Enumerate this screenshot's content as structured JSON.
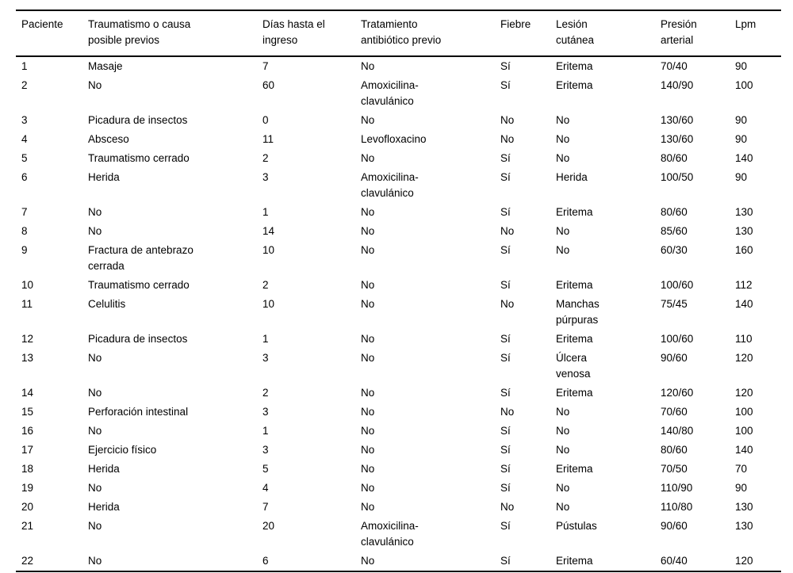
{
  "table": {
    "columns": [
      {
        "key": "paciente",
        "label": "Paciente"
      },
      {
        "key": "traumatismo",
        "label": "Traumatismo o causa posible previos"
      },
      {
        "key": "dias",
        "label": "Días hasta el ingreso"
      },
      {
        "key": "tratamiento",
        "label": "Tratamiento antibiótico previo"
      },
      {
        "key": "fiebre",
        "label": "Fiebre"
      },
      {
        "key": "lesion",
        "label": "Lesión cutánea"
      },
      {
        "key": "presion",
        "label": "Presión arterial"
      },
      {
        "key": "lpm",
        "label": "Lpm"
      }
    ],
    "rows": [
      [
        "1",
        "Masaje",
        "7",
        "No",
        "Sí",
        "Eritema",
        "70/40",
        "90"
      ],
      [
        "2",
        "No",
        "60",
        "Amoxicilina-clavulánico",
        "Sí",
        "Eritema",
        "140/90",
        "100"
      ],
      [
        "3",
        "Picadura de insectos",
        "0",
        "No",
        "No",
        "No",
        "130/60",
        "90"
      ],
      [
        "4",
        "Absceso",
        "11",
        "Levofloxacino",
        "No",
        "No",
        "130/60",
        "90"
      ],
      [
        "5",
        "Traumatismo cerrado",
        "2",
        "No",
        "Sí",
        "No",
        "80/60",
        "140"
      ],
      [
        "6",
        "Herida",
        "3",
        "Amoxicilina-clavulánico",
        "Sí",
        "Herida",
        "100/50",
        "90"
      ],
      [
        "7",
        "No",
        "1",
        "No",
        "Sí",
        "Eritema",
        "80/60",
        "130"
      ],
      [
        "8",
        "No",
        "14",
        "No",
        "No",
        "No",
        "85/60",
        "130"
      ],
      [
        "9",
        "Fractura de antebrazo cerrada",
        "10",
        "No",
        "Sí",
        "No",
        "60/30",
        "160"
      ],
      [
        "10",
        "Traumatismo cerrado",
        "2",
        "No",
        "Sí",
        "Eritema",
        "100/60",
        "112"
      ],
      [
        "11",
        "Celulitis",
        "10",
        "No",
        "No",
        "Manchas púrpuras",
        "75/45",
        "140"
      ],
      [
        "12",
        "Picadura de insectos",
        "1",
        "No",
        "Sí",
        "Eritema",
        "100/60",
        "110"
      ],
      [
        "13",
        "No",
        "3",
        "No",
        "Sí",
        "Úlcera venosa",
        "90/60",
        "120"
      ],
      [
        "14",
        "No",
        "2",
        "No",
        "Sí",
        "Eritema",
        "120/60",
        "120"
      ],
      [
        "15",
        "Perforación intestinal",
        "3",
        "No",
        "No",
        "No",
        "70/60",
        "100"
      ],
      [
        "16",
        "No",
        "1",
        "No",
        "Sí",
        "No",
        "140/80",
        "100"
      ],
      [
        "17",
        "Ejercicio físico",
        "3",
        "No",
        "Sí",
        "No",
        "80/60",
        "140"
      ],
      [
        "18",
        "Herida",
        "5",
        "No",
        "Sí",
        "Eritema",
        "70/50",
        "70"
      ],
      [
        "19",
        "No",
        "4",
        "No",
        "Sí",
        "No",
        "110/90",
        "90"
      ],
      [
        "20",
        "Herida",
        "7",
        "No",
        "No",
        "No",
        "110/80",
        "130"
      ],
      [
        "21",
        "No",
        "20",
        "Amoxicilina-clavulánico",
        "Sí",
        "Pústulas",
        "90/60",
        "130"
      ],
      [
        "22",
        "No",
        "6",
        "No",
        "Sí",
        "Eritema",
        "60/40",
        "120"
      ]
    ]
  }
}
